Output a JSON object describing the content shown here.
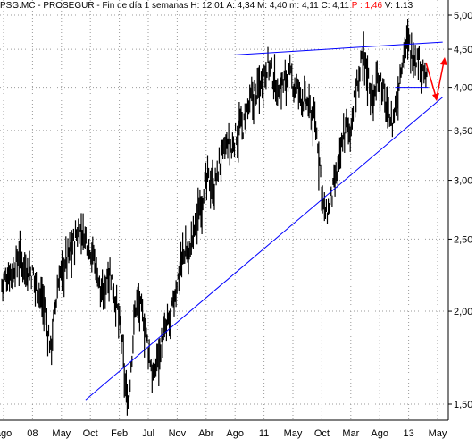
{
  "header": {
    "symbol": "PSG.MC - PROSEGUR - Fin de día 1 semanas",
    "high": "H: 12:01",
    "open": "A: 4,34",
    "max": "M: 4,40",
    "min": "m: 4,11",
    "close": "C: 4,11",
    "change": "P : 1,46",
    "volume": "V: 1.13"
  },
  "chart_data": {
    "type": "bar",
    "scale": "log",
    "ylim": [
      1.45,
      5.0
    ],
    "y_ticks": [
      {
        "label": "5,00",
        "value": 5.0
      },
      {
        "label": "4,50",
        "value": 4.5
      },
      {
        "label": "4,00",
        "value": 4.0
      },
      {
        "label": "3,50",
        "value": 3.5
      },
      {
        "label": "3,00",
        "value": 3.0
      },
      {
        "label": "2,50",
        "value": 2.5
      },
      {
        "label": "2,00",
        "value": 2.0
      },
      {
        "label": "1,50",
        "value": 1.5
      }
    ],
    "x_labels": [
      "ago",
      "08",
      "May",
      "Oct",
      "Feb",
      "Jul",
      "Nov",
      "Abr",
      "Ago",
      "11",
      "May",
      "Oct",
      "Mar",
      "Ago",
      "13",
      "May"
    ],
    "series_close": [
      2.2,
      2.22,
      2.25,
      2.3,
      2.28,
      2.35,
      2.4,
      2.38,
      2.32,
      2.3,
      2.28,
      2.25,
      2.2,
      2.15,
      2.1,
      2.05,
      1.9,
      1.8,
      1.95,
      2.1,
      2.25,
      2.3,
      2.35,
      2.4,
      2.45,
      2.5,
      2.55,
      2.6,
      2.58,
      2.55,
      2.5,
      2.45,
      2.4,
      2.3,
      2.2,
      2.1,
      2.2,
      2.3,
      2.25,
      2.15,
      2.05,
      1.95,
      1.8,
      1.6,
      1.52,
      1.7,
      1.95,
      2.1,
      2.05,
      2.0,
      1.9,
      1.8,
      1.7,
      1.65,
      1.75,
      1.8,
      1.85,
      1.9,
      1.95,
      2.0,
      2.1,
      2.2,
      2.3,
      2.4,
      2.45,
      2.4,
      2.5,
      2.6,
      2.7,
      2.8,
      2.9,
      3.0,
      3.05,
      3.0,
      2.95,
      3.1,
      3.2,
      3.3,
      3.35,
      3.4,
      3.3,
      3.45,
      3.5,
      3.6,
      3.55,
      3.7,
      3.8,
      3.9,
      3.95,
      4.0,
      4.1,
      4.2,
      4.3,
      4.35,
      4.2,
      4.1,
      4.0,
      4.05,
      4.1,
      4.15,
      4.2,
      4.1,
      4.05,
      4.0,
      3.95,
      3.9,
      3.85,
      3.8,
      3.7,
      3.6,
      3.4,
      3.1,
      2.8,
      2.7,
      2.8,
      2.9,
      3.0,
      3.1,
      3.3,
      3.5,
      3.6,
      3.5,
      3.7,
      3.9,
      4.1,
      4.3,
      4.45,
      4.3,
      4.1,
      3.9,
      4.0,
      4.2,
      4.1,
      3.95,
      3.8,
      3.7,
      3.6,
      3.8,
      4.0,
      4.3,
      4.55,
      4.65,
      4.6,
      4.5,
      4.45,
      4.4,
      4.35,
      4.2,
      4.11
    ],
    "trendlines": [
      {
        "name": "upper-resistance",
        "from": [
          0.49,
          4.42
        ],
        "to": [
          0.93,
          4.6
        ],
        "color": "#0000ff"
      },
      {
        "name": "lower-support",
        "from": [
          0.18,
          1.52
        ],
        "to": [
          0.93,
          3.88
        ],
        "color": "#0000ff"
      },
      {
        "name": "support-level",
        "from": [
          0.83,
          4.0
        ],
        "to": [
          0.9,
          4.0
        ],
        "color": "#0000ff"
      }
    ],
    "arrows_color": "#ff0000",
    "bar_color": "#000000",
    "grid": true
  }
}
